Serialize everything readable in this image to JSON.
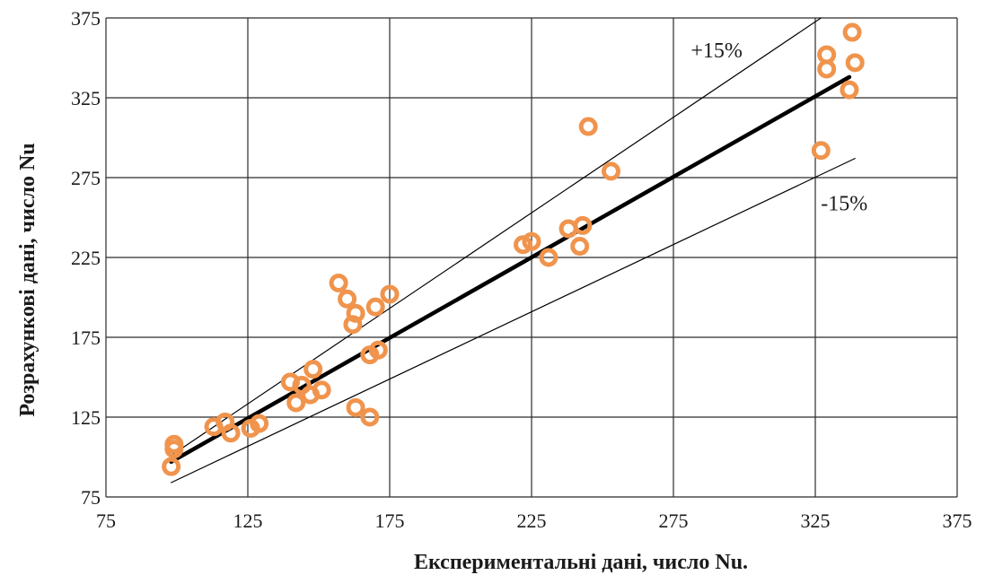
{
  "chart_data": {
    "type": "scatter",
    "xlabel": "Експериментальні дані, число Nu.",
    "ylabel": "Розрахункові дані, число Nu",
    "xlim": [
      75,
      375
    ],
    "ylim": [
      75,
      375
    ],
    "xticks": [
      "75",
      "125",
      "175",
      "225",
      "275",
      "325",
      "375"
    ],
    "yticks": [
      "75",
      "125",
      "175",
      "225",
      "275",
      "325",
      "375"
    ],
    "grid": true,
    "marker_color": "#F0944D",
    "series": [
      {
        "points": [
          [
            98,
            94
          ],
          [
            99,
            105
          ],
          [
            99,
            108
          ],
          [
            113,
            119
          ],
          [
            117,
            122
          ],
          [
            119,
            115
          ],
          [
            126,
            118
          ],
          [
            129,
            121
          ],
          [
            140,
            147
          ],
          [
            142,
            134
          ],
          [
            144,
            145
          ],
          [
            147,
            139
          ],
          [
            148,
            155
          ],
          [
            151,
            142
          ],
          [
            157,
            209
          ],
          [
            160,
            199
          ],
          [
            162,
            183
          ],
          [
            163,
            190
          ],
          [
            163,
            131
          ],
          [
            168,
            164
          ],
          [
            168,
            125
          ],
          [
            170,
            194
          ],
          [
            171,
            167
          ],
          [
            175,
            202
          ],
          [
            222,
            233
          ],
          [
            225,
            235
          ],
          [
            231,
            225
          ],
          [
            238,
            243
          ],
          [
            242,
            232
          ],
          [
            243,
            245
          ],
          [
            245,
            307
          ],
          [
            253,
            279
          ],
          [
            327,
            292
          ],
          [
            329,
            352
          ],
          [
            329,
            343
          ],
          [
            337,
            330
          ],
          [
            338,
            366
          ],
          [
            339,
            347
          ]
        ]
      }
    ],
    "reference_lines": [
      {
        "label": "",
        "kind": "fit",
        "x": [
          98,
          337
        ],
        "y": [
          97,
          338
        ],
        "color": "#000000"
      },
      {
        "label": "+15%",
        "kind": "upper",
        "x": [
          98,
          327
        ],
        "y": [
          101,
          375
        ],
        "color": "#000000"
      },
      {
        "label": "-15%",
        "kind": "lower",
        "x": [
          98,
          339
        ],
        "y": [
          84,
          287
        ],
        "color": "#000000"
      }
    ]
  }
}
